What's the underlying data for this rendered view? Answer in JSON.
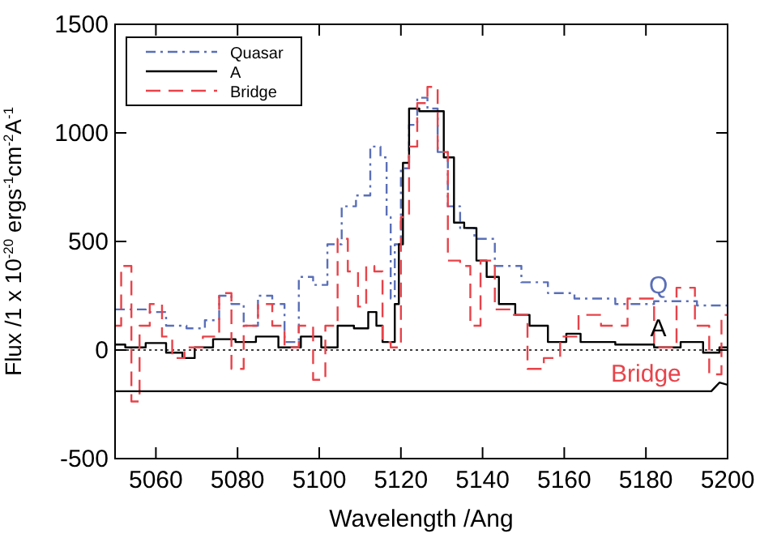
{
  "chart_data": {
    "type": "step",
    "xlabel": "Wavelength /Ang",
    "ylabel": "Flux /1 x 10$^{-20}$ ergs$^{-1}$cm$^{-2}$A$^{-1}$",
    "xlim": [
      5050,
      5200
    ],
    "ylim": [
      -500,
      1500
    ],
    "xticks": [
      5060,
      5080,
      5100,
      5120,
      5140,
      5160,
      5180,
      5200
    ],
    "yticks": [
      -500,
      0,
      500,
      1000,
      1500
    ],
    "grid": false,
    "legend": "top left",
    "marker": "none",
    "series": [
      {
        "name": "Quasar",
        "color": "#5a6fb8",
        "line_style": "dashdot",
        "x": [
          5050,
          5055,
          5060,
          5065,
          5070,
          5074,
          5077,
          5080,
          5083,
          5087,
          5090,
          5093,
          5097,
          5100,
          5104,
          5107,
          5111,
          5114,
          5116,
          5117,
          5118,
          5119,
          5121,
          5123,
          5125,
          5128,
          5130,
          5133,
          5136,
          5140,
          5146,
          5153,
          5159,
          5166,
          5179,
          5185,
          5200
        ],
        "values": [
          187,
          187,
          175,
          112,
          100,
          137,
          250,
          212,
          112,
          250,
          212,
          37,
          337,
          300,
          487,
          662,
          712,
          937,
          887,
          612,
          237,
          487,
          837,
          1037,
          1162,
          1112,
          912,
          662,
          562,
          512,
          387,
          312,
          262,
          237,
          212,
          225,
          205
        ]
      },
      {
        "name": "A",
        "color": "#000000",
        "line_style": "solid",
        "x": [
          5050,
          5055,
          5060,
          5065,
          5068,
          5071,
          5077,
          5082,
          5087,
          5093,
          5098,
          5103,
          5106,
          5111,
          5113,
          5115,
          5116,
          5118,
          5119,
          5120,
          5121,
          5123,
          5126,
          5129,
          5132,
          5134,
          5137,
          5140,
          5142,
          5146,
          5150,
          5153,
          5159,
          5162,
          5166,
          5179,
          5185,
          5192,
          5196,
          5200
        ],
        "values": [
          25,
          12,
          32,
          -12,
          -37,
          12,
          50,
          37,
          62,
          12,
          62,
          12,
          112,
          100,
          175,
          112,
          37,
          37,
          212,
          487,
          862,
          1112,
          1100,
          1100,
          887,
          587,
          562,
          412,
          337,
          212,
          162,
          112,
          37,
          75,
          37,
          25,
          12,
          37,
          -12,
          12
        ]
      },
      {
        "name": "Bridge",
        "color": "#e8434a",
        "line_style": "dashed",
        "x": [
          5050,
          5053,
          5055,
          5057,
          5060,
          5063,
          5065,
          5069,
          5074,
          5077,
          5080,
          5083,
          5087,
          5090,
          5093,
          5097,
          5100,
          5103,
          5106,
          5108,
          5111,
          5112,
          5115,
          5116,
          5119,
          5121,
          5123,
          5125,
          5128,
          5130,
          5133,
          5136,
          5138,
          5141,
          5145,
          5149,
          5153,
          5157,
          5161,
          5166,
          5172,
          5179,
          5185,
          5190,
          5194,
          5197,
          5200
        ],
        "values": [
          112,
          387,
          -237,
          112,
          212,
          62,
          -37,
          12,
          62,
          262,
          -87,
          112,
          212,
          112,
          12,
          112,
          -137,
          112,
          512,
          362,
          200,
          387,
          362,
          37,
          12,
          612,
          937,
          1137,
          1212,
          912,
          412,
          387,
          112,
          412,
          187,
          162,
          -87,
          -37,
          62,
          162,
          112,
          237,
          12,
          287,
          112,
          -112,
          162
        ]
      },
      {
        "color": "#000000",
        "line_style": "solid",
        "type": "line",
        "x": [
          5050,
          5196,
          5198,
          5200
        ],
        "values": [
          -190,
          -190,
          -150,
          -160
        ]
      }
    ],
    "ref_lines": [
      {
        "axis": "y",
        "value": 0,
        "line_style": "dotted",
        "color": "#000000"
      }
    ],
    "annotations": [
      "Q",
      "A",
      "Bridge"
    ]
  }
}
